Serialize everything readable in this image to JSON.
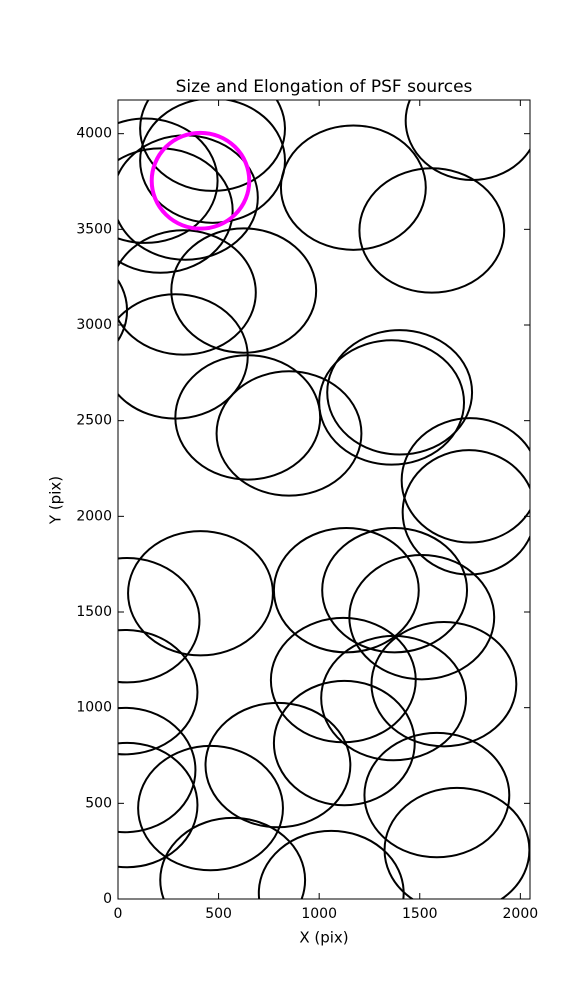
{
  "chart_data": {
    "type": "ellipse",
    "title": "Size and Elongation of PSF sources",
    "xlabel": "X (pix)",
    "ylabel": "Y (pix)",
    "x": [
      470,
      135,
      470,
      335,
      210,
      1760,
      1170,
      1560,
      625,
      325,
      -315,
      285,
      645,
      850,
      1400,
      1360,
      1750,
      1745,
      410,
      45,
      35,
      35,
      45,
      460,
      570,
      1060,
      795,
      1125,
      1120,
      1375,
      1135,
      1510,
      1370,
      1620,
      1585,
      1685
    ],
    "y": [
      4026,
      3754,
      3859,
      3666,
      3598,
      4068,
      3718,
      3494,
      3180,
      3170,
      3076,
      2836,
      2517,
      2433,
      2648,
      2595,
      2188,
      2021,
      1598,
      1457,
      1081,
      674,
      491,
      475,
      99,
      31,
      700,
      815,
      1144,
      1614,
      1614,
      1473,
      1050,
      1123,
      543,
      256
    ],
    "widths": [
      720,
      720,
      720,
      720,
      720,
      660,
      720,
      720,
      720,
      720,
      720,
      720,
      720,
      720,
      720,
      720,
      680,
      660,
      720,
      720,
      720,
      700,
      700,
      720,
      720,
      720,
      720,
      700,
      720,
      720,
      720,
      720,
      720,
      720,
      720,
      720
    ],
    "heights": [
      650,
      650,
      650,
      650,
      650,
      620,
      650,
      650,
      650,
      650,
      650,
      650,
      650,
      650,
      650,
      650,
      650,
      650,
      650,
      650,
      650,
      650,
      650,
      650,
      650,
      650,
      650,
      650,
      650,
      650,
      650,
      650,
      650,
      650,
      650,
      650
    ],
    "color": "#000000",
    "highlight": {
      "x": 410,
      "y": 3754,
      "width": 485,
      "height": 501,
      "color": "#ff00ff"
    },
    "xlim": [
      0,
      2048
    ],
    "ylim": [
      0,
      4176
    ],
    "xticks": [
      0,
      500,
      1000,
      1500,
      2000
    ],
    "yticks": [
      0,
      500,
      1000,
      1500,
      2000,
      2500,
      3000,
      3500,
      4000
    ]
  }
}
